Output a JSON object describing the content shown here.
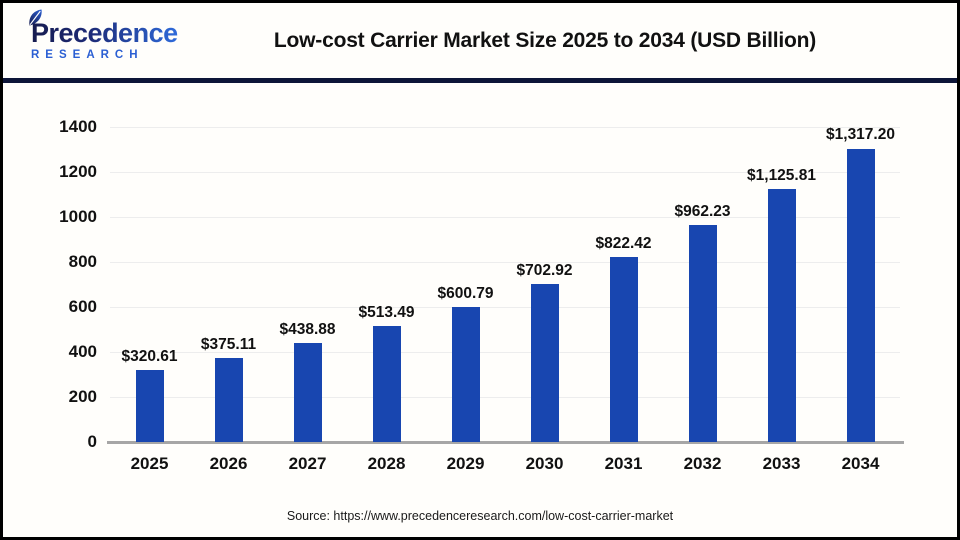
{
  "header": {
    "logo_text": "Precedence",
    "logo_subtext": "RESEARCH",
    "title": "Low-cost Carrier Market Size 2025 to 2034 (USD Billion)"
  },
  "chart_data": {
    "type": "bar",
    "title": "Low-cost Carrier Market Size 2025 to 2034 (USD Billion)",
    "unit": "USD Billion",
    "categories": [
      "2025",
      "2026",
      "2027",
      "2028",
      "2029",
      "2030",
      "2031",
      "2032",
      "2033",
      "2034"
    ],
    "values": [
      320.61,
      375.11,
      438.88,
      513.49,
      600.79,
      702.92,
      822.42,
      962.23,
      1125.81,
      1317.2
    ],
    "value_labels": [
      "$320.61",
      "$375.11",
      "$438.88",
      "$513.49",
      "$600.79",
      "$702.92",
      "$822.42",
      "$962.23",
      "$1,125.81",
      "$1,317.20"
    ],
    "xlabel": "",
    "ylabel": "",
    "ylim": [
      0,
      1400
    ],
    "yticks": [
      0,
      200,
      400,
      600,
      800,
      1000,
      1200,
      1400
    ],
    "grid": "horizontal",
    "legend": "none"
  },
  "footer": {
    "source": "Source: https://www.precedenceresearch.com/low-cost-carrier-market"
  },
  "colors": {
    "bar": "#1846b0",
    "header_rule": "#0d1538",
    "axis_line": "#a6a6a6",
    "gridline": "#ededed",
    "logo_gradient_start": "#171c4f",
    "logo_gradient_end": "#2f6bdb",
    "logo_research": "#2b5fd3",
    "frame_border": "#000000",
    "background": "#fffefb",
    "text": "#111111"
  }
}
